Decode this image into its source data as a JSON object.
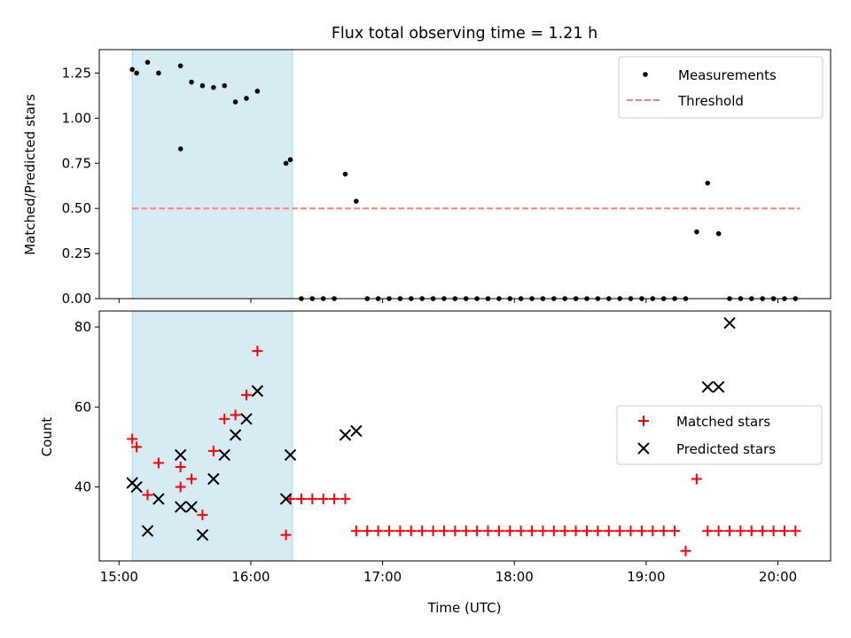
{
  "title": "Flux total observing time = 1.21 h",
  "colors": {
    "shade": "#add8e6",
    "measurement": "#000000",
    "threshold": "#ff7f7f",
    "matched": "#ff0000",
    "predicted": "#000000"
  },
  "chart_data": [
    {
      "type": "scatter",
      "panel": "top",
      "xlabel": "",
      "ylabel": "Matched/Predicted stars",
      "xlim": [
        "14:51",
        "20:24"
      ],
      "ylim": [
        0,
        1.38
      ],
      "yticks": [
        "0.00",
        "0.25",
        "0.50",
        "0.75",
        "1.00",
        "1.25"
      ],
      "shaded_interval": [
        "15:06",
        "16:19"
      ],
      "legend_position": "upper right",
      "legend": [
        "Measurements",
        "Threshold"
      ],
      "threshold": {
        "name": "Threshold",
        "y": 0.5,
        "x": [
          "15:06",
          "20:10"
        ],
        "style": "dashed"
      },
      "series": [
        {
          "name": "Measurements",
          "marker": "dot",
          "x": [
            "15:06",
            "15:08",
            "15:13",
            "15:18",
            "15:28",
            "15:33",
            "15:38",
            "15:43",
            "15:48",
            "15:53",
            "15:58",
            "16:03",
            "16:16",
            "16:18",
            "16:23",
            "16:28",
            "16:33",
            "16:38",
            "16:43",
            "16:48",
            "16:53",
            "16:58",
            "17:03",
            "17:08",
            "17:13",
            "17:18",
            "17:23",
            "17:28",
            "17:33",
            "17:38",
            "17:43",
            "17:48",
            "17:53",
            "17:58",
            "18:03",
            "18:08",
            "18:13",
            "18:18",
            "18:23",
            "18:28",
            "18:33",
            "18:38",
            "18:43",
            "18:48",
            "18:53",
            "18:58",
            "19:03",
            "19:08",
            "19:13",
            "19:18",
            "19:23",
            "19:28",
            "19:33",
            "19:38",
            "19:43",
            "19:48",
            "19:53",
            "19:58",
            "20:03",
            "20:08",
            "15:28"
          ],
          "y": [
            1.27,
            1.25,
            1.31,
            1.25,
            1.29,
            1.2,
            1.18,
            1.17,
            1.18,
            1.09,
            1.11,
            1.15,
            0.75,
            0.77,
            0,
            0,
            0,
            0,
            0.69,
            0.54,
            0,
            0,
            0,
            0,
            0,
            0,
            0,
            0,
            0,
            0,
            0,
            0,
            0,
            0,
            0,
            0,
            0,
            0,
            0,
            0,
            0,
            0,
            0,
            0,
            0,
            0,
            0,
            0,
            0,
            0,
            0.37,
            0.64,
            0.36,
            0,
            0,
            0,
            0,
            0,
            0,
            0,
            0.83
          ]
        }
      ]
    },
    {
      "type": "scatter",
      "panel": "bottom",
      "xlabel": "Time (UTC)",
      "ylabel": "Count",
      "xlim": [
        "14:51",
        "20:24"
      ],
      "ylim": [
        21.5,
        84
      ],
      "yticks": [
        "40",
        "60",
        "80"
      ],
      "xticks": [
        "15:00",
        "16:00",
        "17:00",
        "18:00",
        "19:00",
        "20:00"
      ],
      "shaded_interval": [
        "15:06",
        "16:19"
      ],
      "legend_position": "center right",
      "legend": [
        "Matched stars",
        "Predicted stars"
      ],
      "series": [
        {
          "name": "Matched stars",
          "marker": "plus",
          "x": [
            "15:06",
            "15:08",
            "15:13",
            "15:18",
            "15:28",
            "15:28",
            "15:33",
            "15:38",
            "15:43",
            "15:48",
            "15:53",
            "15:58",
            "16:03",
            "16:16",
            "16:18",
            "16:23",
            "16:28",
            "16:33",
            "16:38",
            "16:43",
            "16:48",
            "16:53",
            "16:58",
            "17:03",
            "17:08",
            "17:13",
            "17:18",
            "17:23",
            "17:28",
            "17:33",
            "17:38",
            "17:43",
            "17:48",
            "17:53",
            "17:58",
            "18:03",
            "18:08",
            "18:13",
            "18:18",
            "18:23",
            "18:28",
            "18:33",
            "18:38",
            "18:43",
            "18:48",
            "18:53",
            "18:58",
            "19:03",
            "19:08",
            "19:13",
            "19:18",
            "19:23",
            "19:28",
            "19:33",
            "19:38",
            "19:43",
            "19:48",
            "19:53",
            "19:58",
            "20:03",
            "20:08"
          ],
          "y": [
            52,
            50,
            38,
            46,
            40,
            45,
            42,
            33,
            49,
            57,
            58,
            63,
            74,
            28,
            37,
            37,
            37,
            37,
            37,
            37,
            29,
            29,
            29,
            29,
            29,
            29,
            29,
            29,
            29,
            29,
            29,
            29,
            29,
            29,
            29,
            29,
            29,
            29,
            29,
            29,
            29,
            29,
            29,
            29,
            29,
            29,
            29,
            29,
            29,
            29,
            24,
            42,
            29,
            29,
            29,
            29,
            29,
            29,
            29,
            29,
            29
          ]
        },
        {
          "name": "Predicted stars",
          "marker": "x",
          "x": [
            "15:06",
            "15:08",
            "15:13",
            "15:18",
            "15:28",
            "15:28",
            "15:33",
            "15:38",
            "15:43",
            "15:48",
            "15:53",
            "15:58",
            "16:03",
            "16:16",
            "16:18",
            "16:43",
            "16:48",
            "19:28",
            "19:33",
            "19:38"
          ],
          "y": [
            41,
            40,
            29,
            37,
            48,
            35,
            35,
            28,
            42,
            48,
            53,
            57,
            64,
            37,
            48,
            53,
            54,
            65,
            65,
            81
          ]
        }
      ]
    }
  ]
}
